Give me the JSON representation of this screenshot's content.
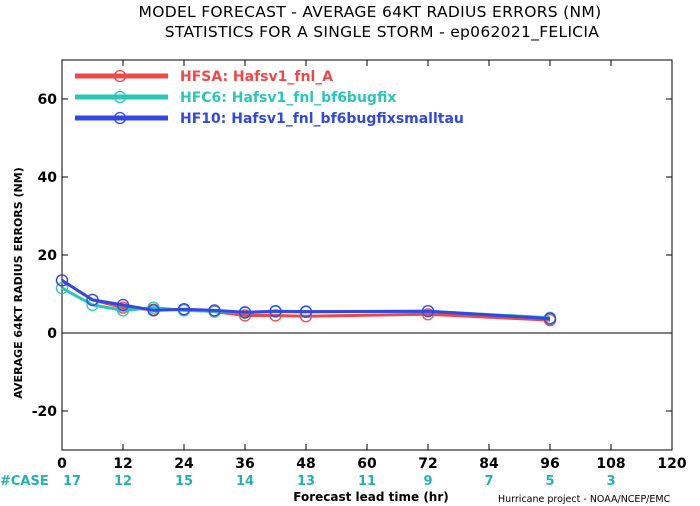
{
  "title_line1": "MODEL FORECAST - AVERAGE 64KT RADIUS ERRORS (NM)",
  "title_line2": "STATISTICS FOR A SINGLE STORM - ep062021_FELICIA",
  "credit": "Hurricane project - NOAA/NCEP/EMC",
  "case_label": "#CASE",
  "chart_data": {
    "type": "line",
    "xlabel": "Forecast lead time (hr)",
    "ylabel": "AVERAGE 64KT RADIUS ERRORS (NM)",
    "xlim": [
      0,
      120
    ],
    "ylim": [
      -30,
      70
    ],
    "xticks": [
      0,
      12,
      24,
      36,
      48,
      60,
      72,
      84,
      96,
      108,
      120
    ],
    "yticks": [
      -20,
      0,
      20,
      40,
      60
    ],
    "zero_line": true,
    "grid": false,
    "legend": "top-left",
    "series": [
      {
        "name": "HFSA: Hafsv1_fnl_A",
        "color": "#f04848",
        "x": [
          0,
          6,
          12,
          18,
          24,
          30,
          36,
          42,
          48,
          72,
          96
        ],
        "y": [
          13.5,
          8.5,
          6.5,
          6,
          6,
          5.5,
          4.5,
          4.5,
          4.3,
          4.8,
          3.3
        ]
      },
      {
        "name": "HFC6: Hafsv1_fnl_bf6bugfix",
        "color": "#2ac6b9",
        "x": [
          0,
          6,
          12,
          18,
          24,
          30,
          36,
          42,
          48,
          72,
          96
        ],
        "y": [
          11.5,
          7.2,
          5.8,
          6.5,
          5.8,
          5.6,
          5.2,
          5.5,
          5.4,
          5.6,
          3.9
        ]
      },
      {
        "name": "HF10: Hafsv1_fnl_bf6bugfixsmalltau",
        "color": "#3248e4",
        "x": [
          0,
          6,
          12,
          18,
          24,
          30,
          36,
          42,
          48,
          72,
          96
        ],
        "y": [
          13.5,
          8.5,
          7.2,
          5.8,
          6.1,
          5.8,
          5.3,
          5.6,
          5.5,
          5.6,
          3.7
        ]
      }
    ],
    "cases": {
      "x": [
        0,
        12,
        24,
        36,
        48,
        60,
        72,
        84,
        96,
        108
      ],
      "values": [
        "17",
        "12",
        "15",
        "14",
        "13",
        "11",
        "9",
        "7",
        "5",
        "3"
      ]
    }
  }
}
